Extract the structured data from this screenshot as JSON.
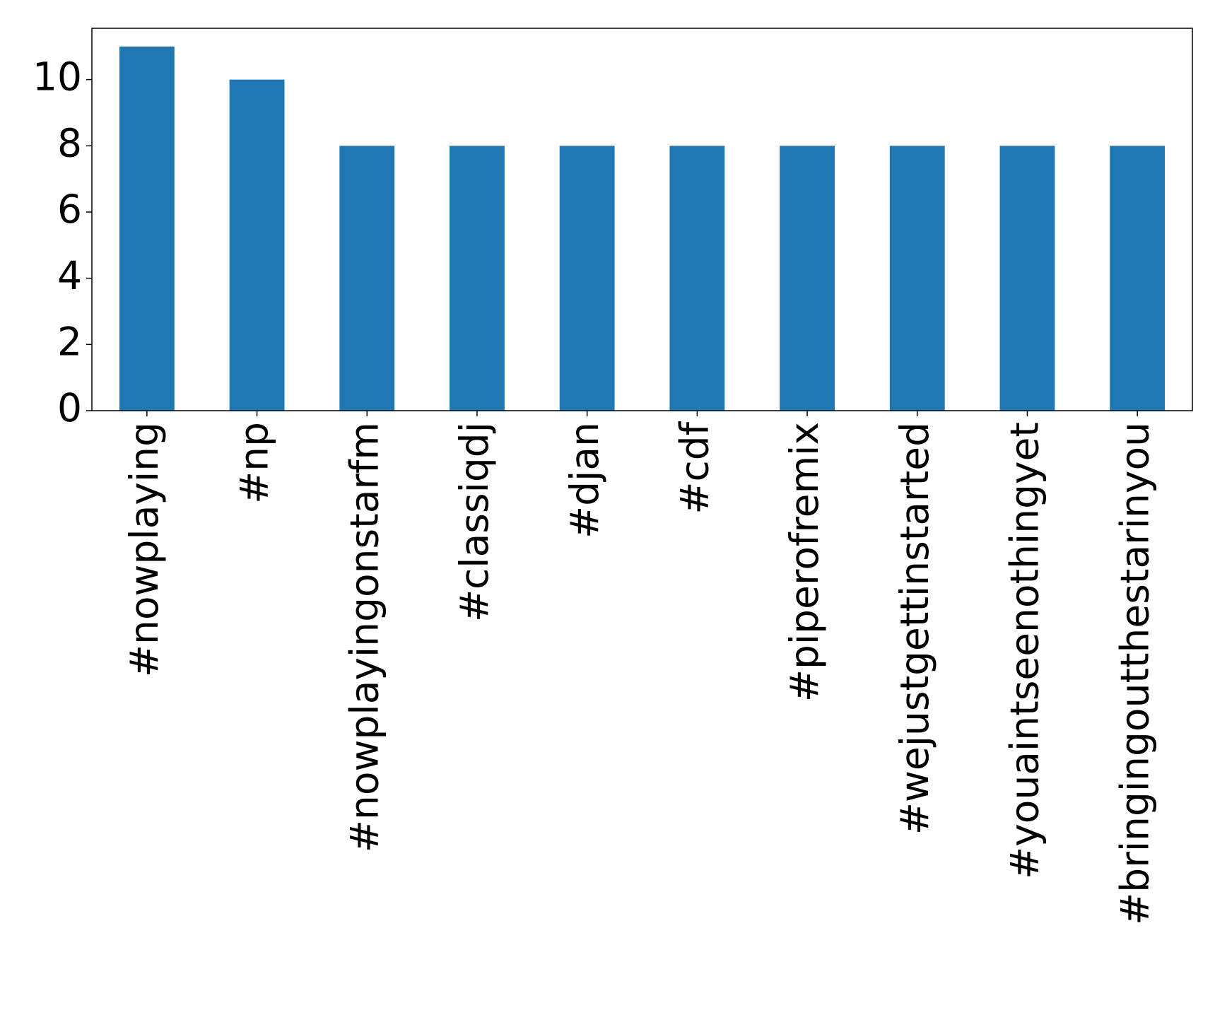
{
  "chart_data": {
    "type": "bar",
    "categories": [
      "#nowplaying",
      "#np",
      "#nowplayingonstarfm",
      "#classiqdj",
      "#djan",
      "#cdf",
      "#piperofremix",
      "#wejustgettinstarted",
      "#youaintseenothingyet",
      "#bringingoutthestarinyou"
    ],
    "values": [
      11,
      10,
      8,
      8,
      8,
      8,
      8,
      8,
      8,
      8
    ],
    "color": "#1f77b4",
    "ylim": [
      0,
      11.55
    ],
    "yticks": [
      0,
      2,
      4,
      6,
      8,
      10
    ],
    "grid": false
  }
}
